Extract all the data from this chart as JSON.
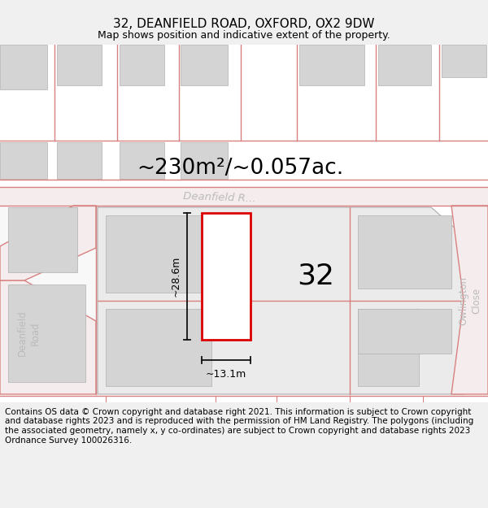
{
  "title": "32, DEANFIELD ROAD, OXFORD, OX2 9DW",
  "subtitle": "Map shows position and indicative extent of the property.",
  "area_label": "~230m²/~0.057ac.",
  "number_label": "32",
  "width_label": "~13.1m",
  "height_label": "~28.6m",
  "footer": "Contains OS data © Crown copyright and database right 2021. This information is subject to Crown copyright and database rights 2023 and is reproduced with the permission of HM Land Registry. The polygons (including the associated geometry, namely x, y co-ordinates) are subject to Crown copyright and database rights 2023 Ordnance Survey 100026316.",
  "bg_color": "#f0f0f0",
  "map_bg": "#ffffff",
  "road_line_color": "#d88080",
  "road_fill_color": "#f5eded",
  "block_color": "#d4d4d4",
  "block_edge_color": "#b0b0b0",
  "highlight_color": "#dd0000",
  "road_label_color": "#bbbbbb",
  "dim_line_color": "#111111",
  "title_fontsize": 11,
  "subtitle_fontsize": 9,
  "area_fontsize": 19,
  "number_fontsize": 26,
  "dim_fontsize": 9,
  "footer_fontsize": 7.5,
  "road_label_fontsize": 8.5
}
